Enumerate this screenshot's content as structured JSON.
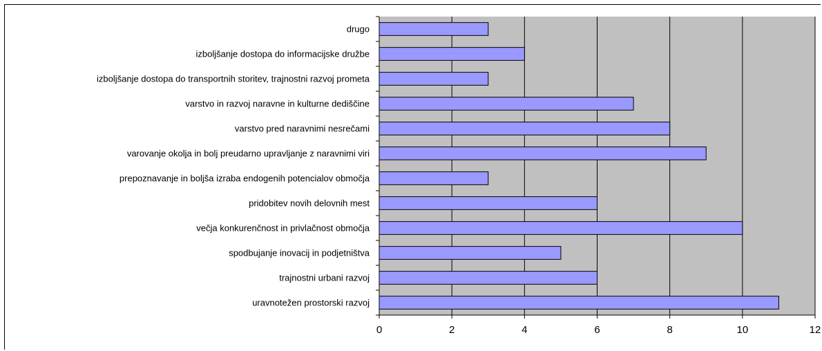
{
  "chart_data": {
    "type": "bar",
    "orientation": "horizontal",
    "categories": [
      "drugo",
      "izboljšanje dostopa do informacijske družbe",
      "izboljšanje dostopa do transportnih storitev, trajnostni razvoj prometa",
      "varstvo in razvoj naravne in kulturne dediščine",
      "varstvo pred naravnimi nesrečami",
      "varovanje okolja in bolj preudarno upravljanje z naravnimi viri",
      "prepoznavanje in boljša izraba endogenih potencialov območja",
      "pridobitev novih delovnih mest",
      "večja konkurenčnost in privlačnost območja",
      "spodbujanje inovacij in podjetništva",
      "trajnostni urbani razvoj",
      "uravnotežen prostorski razvoj"
    ],
    "values": [
      3,
      4,
      3,
      7,
      8,
      9,
      3,
      6,
      10,
      5,
      6,
      11
    ],
    "xlim": [
      0,
      12
    ],
    "xticks": [
      "0",
      "2",
      "4",
      "6",
      "8",
      "10",
      "12"
    ],
    "grid": true,
    "legend": "none",
    "title": "",
    "xlabel": "",
    "ylabel": ""
  },
  "colors": {
    "plot_background": "#c0c0c0",
    "bar_fill": "#9999ff",
    "bar_stroke": "#000000",
    "gridline": "#000000"
  }
}
